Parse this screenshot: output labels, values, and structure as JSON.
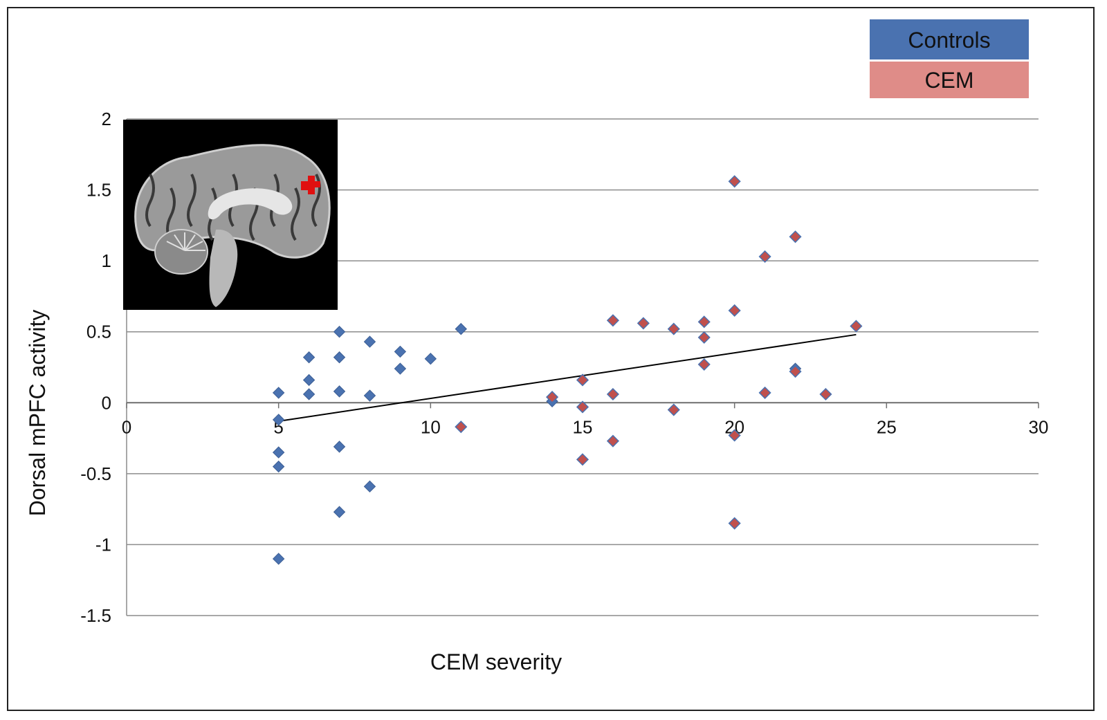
{
  "chart_data": {
    "type": "scatter",
    "title": "",
    "xlabel": "CEM severity",
    "ylabel": "Dorsal mPFC activity",
    "xlim": [
      0,
      30
    ],
    "ylim": [
      -1.5,
      2
    ],
    "xticks": [
      0,
      5,
      10,
      15,
      20,
      25,
      30
    ],
    "yticks": [
      -1.5,
      -1,
      -0.5,
      0,
      0.5,
      1,
      1.5,
      2
    ],
    "grid": "horizontal",
    "legend_position": "top-right",
    "series": [
      {
        "name": "Controls",
        "color": "#4a72b0",
        "marker": "diamond",
        "points": [
          [
            5,
            0.07
          ],
          [
            5,
            -0.12
          ],
          [
            5,
            -0.35
          ],
          [
            5,
            -0.45
          ],
          [
            5,
            -1.1
          ],
          [
            6,
            0.32
          ],
          [
            6,
            0.16
          ],
          [
            6,
            0.06
          ],
          [
            7,
            0.5
          ],
          [
            7,
            0.32
          ],
          [
            7,
            0.08
          ],
          [
            7,
            -0.31
          ],
          [
            7,
            -0.77
          ],
          [
            8,
            0.43
          ],
          [
            8,
            0.05
          ],
          [
            8,
            -0.59
          ],
          [
            9,
            0.36
          ],
          [
            9,
            0.24
          ],
          [
            10,
            0.31
          ],
          [
            11,
            0.52
          ],
          [
            14,
            0.01
          ],
          [
            22,
            0.24
          ]
        ]
      },
      {
        "name": "CEM",
        "color": "#c0504d",
        "legend_color": "#df8c88",
        "marker": "diamond",
        "points": [
          [
            11,
            -0.17
          ],
          [
            14,
            0.04
          ],
          [
            15,
            0.16
          ],
          [
            15,
            -0.03
          ],
          [
            15,
            -0.4
          ],
          [
            16,
            0.58
          ],
          [
            16,
            0.06
          ],
          [
            16,
            -0.27
          ],
          [
            17,
            0.56
          ],
          [
            18,
            0.52
          ],
          [
            18,
            -0.05
          ],
          [
            19,
            0.57
          ],
          [
            19,
            0.46
          ],
          [
            19,
            0.27
          ],
          [
            20,
            1.56
          ],
          [
            20,
            0.65
          ],
          [
            20,
            -0.23
          ],
          [
            20,
            -0.85
          ],
          [
            21,
            1.03
          ],
          [
            21,
            0.07
          ],
          [
            22,
            1.17
          ],
          [
            22,
            0.22
          ],
          [
            23,
            0.06
          ],
          [
            24,
            0.54
          ]
        ]
      }
    ],
    "trendline": {
      "type": "linear",
      "x_start": 5,
      "y_start": -0.13,
      "x_end": 24,
      "y_end": 0.48,
      "color": "#000000"
    }
  },
  "inset": {
    "description_icon": "sagittal-brain-mri",
    "highlight_color": "#e01010"
  }
}
